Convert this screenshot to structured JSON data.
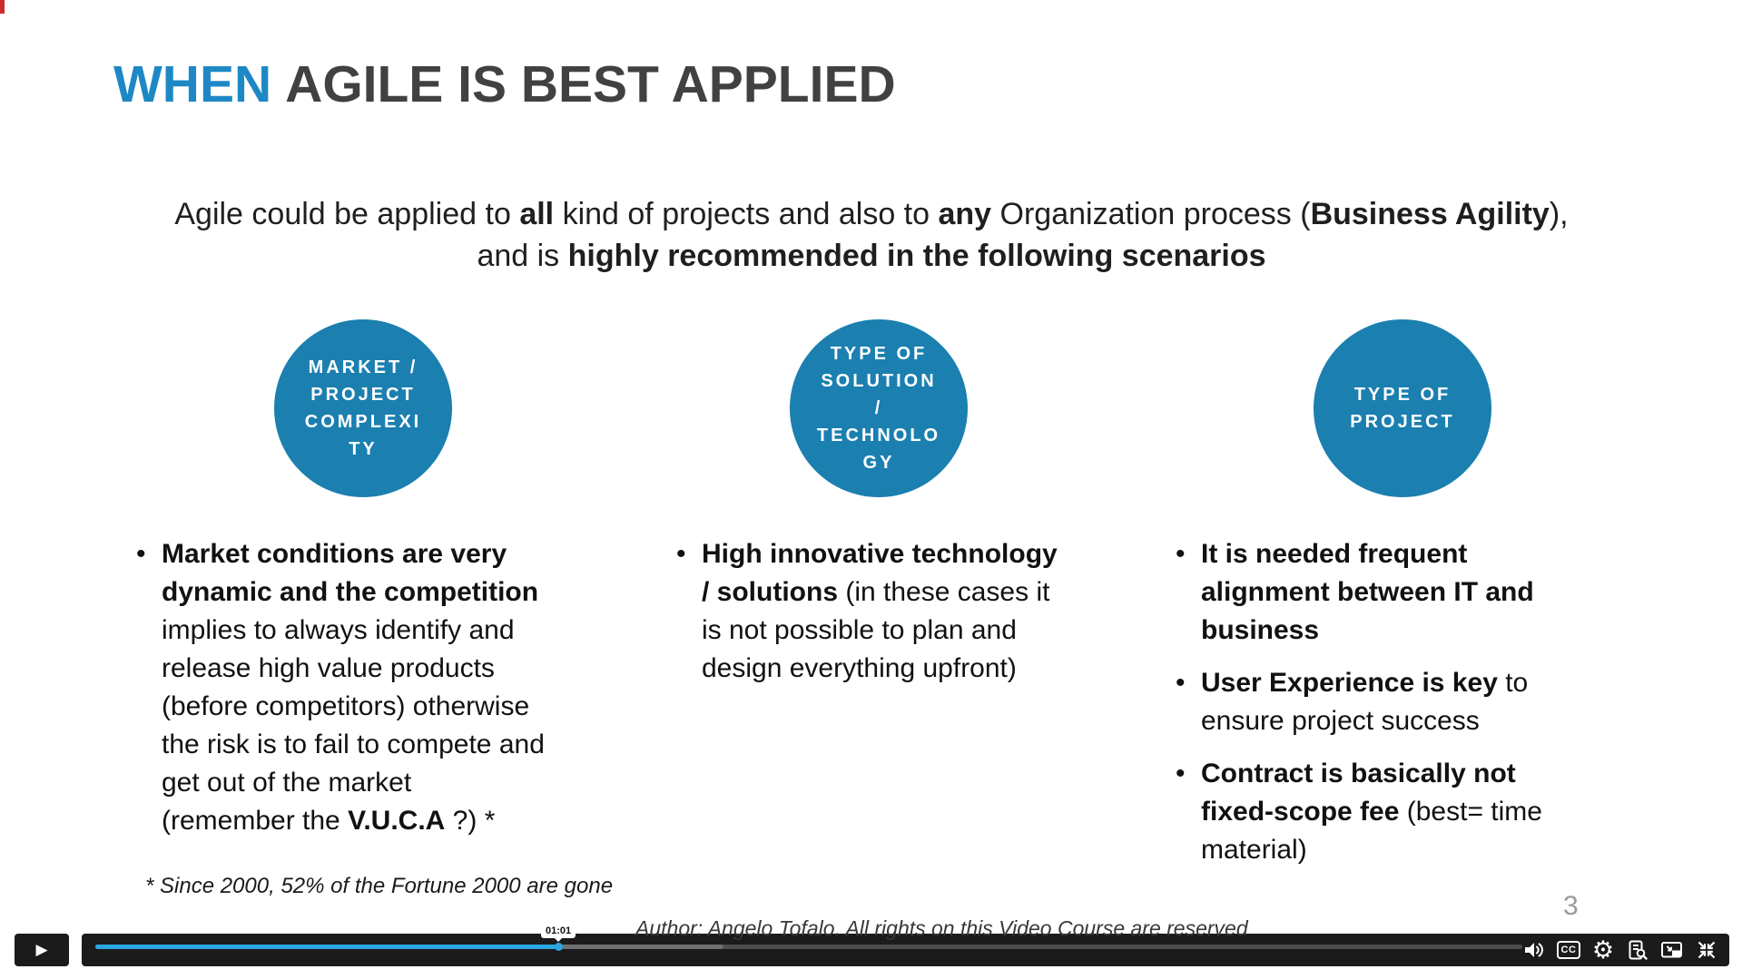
{
  "title": {
    "highlight": "WHEN",
    "rest": "AGILE IS BEST APPLIED"
  },
  "intro_segments": [
    {
      "t": "Agile could be applied to ",
      "b": false
    },
    {
      "t": "all",
      "b": true
    },
    {
      "t": " kind of projects and also to ",
      "b": false
    },
    {
      "t": "any",
      "b": true
    },
    {
      "t": " Organization process (",
      "b": false
    },
    {
      "t": "Business Agility",
      "b": true
    },
    {
      "t": "),\nand is ",
      "b": false
    },
    {
      "t": "highly recommended in the following scenarios",
      "b": true
    }
  ],
  "columns": [
    {
      "circle_label_lines": [
        "MARKET /",
        "PROJECT",
        "COMPLEXI",
        "TY"
      ],
      "bullets": [
        [
          {
            "t": "Market conditions are very\ndynamic and the competition",
            "b": true
          },
          {
            "t": "\nimplies to always identify and\nrelease high value products\n(before competitors) otherwise\nthe risk is to fail to compete and\nget out of the market\n(remember the ",
            "b": false
          },
          {
            "t": "V.U.C.A",
            "b": true
          },
          {
            "t": " ?) *",
            "b": false
          }
        ]
      ]
    },
    {
      "circle_label_lines": [
        "TYPE OF",
        "SOLUTION",
        "/",
        "TECHNOLO",
        "GY"
      ],
      "bullets": [
        [
          {
            "t": "High innovative technology\n/ solutions",
            "b": true
          },
          {
            "t": " (in these cases it\nis not possible to plan and\ndesign everything upfront)",
            "b": false
          }
        ]
      ]
    },
    {
      "circle_label_lines": [
        "TYPE OF",
        "PROJECT"
      ],
      "bullets": [
        [
          {
            "t": "It is needed frequent\nalignment between IT and\nbusiness",
            "b": true
          }
        ],
        [
          {
            "t": "User Experience is key",
            "b": true
          },
          {
            "t": " to\nensure project success",
            "b": false
          }
        ],
        [
          {
            "t": "Contract is basically not\nfixed-scope fee",
            "b": true
          },
          {
            "t": " (best= time\nmaterial)",
            "b": false
          }
        ]
      ]
    }
  ],
  "footnote": "* Since 2000, 52% of the Fortune 2000 are gone",
  "page_number": "3",
  "author_line": "Author: Angelo Tofalo. All rights on this Video Course are reserved",
  "player": {
    "play_glyph": "▶",
    "time_tooltip": "01:01",
    "progress_width": "32.5%",
    "buffered_width": "44%",
    "cc_label": "CC",
    "gear_glyph": "⚙",
    "icon_names": [
      "volume",
      "closed-captions",
      "settings",
      "transcript-search",
      "picture-in-picture",
      "exit-fullscreen"
    ]
  },
  "colors": {
    "title_accent": "#1e88c5",
    "title_text": "#414141",
    "circle_fill": "#1b7fb0",
    "progress_fill": "#29a7e2",
    "player_background": "#1b1b1b",
    "page_number_gray": "#9a9a9a"
  }
}
